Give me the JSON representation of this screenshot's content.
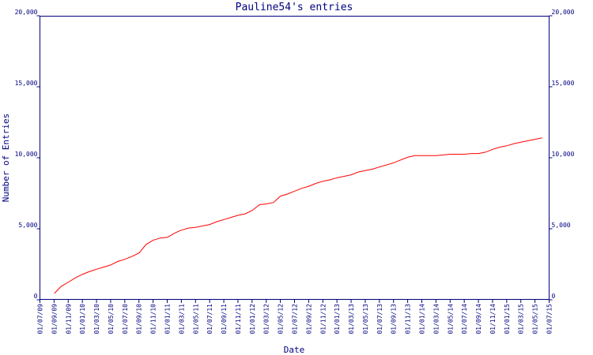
{
  "chart_data": {
    "type": "line",
    "title": "Pauline54's entries",
    "xlabel": "Date",
    "ylabel": "Number of Entries",
    "ylim": [
      0,
      20000
    ],
    "yticks": [
      0,
      5000,
      10000,
      15000,
      20000
    ],
    "ytick_labels": [
      "0",
      "5,000",
      "10,000",
      "15,000",
      "20,000"
    ],
    "xlim": [
      "2009-07-01",
      "2015-07-01"
    ],
    "xtick_labels": [
      "01/07/09",
      "01/09/09",
      "01/11/09",
      "01/01/10",
      "01/03/10",
      "01/05/10",
      "01/07/10",
      "01/09/10",
      "01/11/10",
      "01/01/11",
      "01/03/11",
      "01/05/11",
      "01/07/11",
      "01/09/11",
      "01/11/11",
      "01/01/12",
      "01/03/12",
      "01/05/12",
      "01/07/12",
      "01/09/12",
      "01/11/12",
      "01/01/13",
      "01/03/13",
      "01/05/13",
      "01/07/13",
      "01/09/13",
      "01/11/13",
      "01/01/14",
      "01/03/14",
      "01/05/14",
      "01/07/14",
      "01/09/14",
      "01/11/14",
      "01/01/15",
      "01/03/15",
      "01/05/15",
      "01/07/15"
    ],
    "grid": false,
    "colors": {
      "axis": "#000080",
      "series": "#ff0000",
      "background": "#ffffff"
    },
    "series": [
      {
        "x": [
          "2009-09-01",
          "2009-10-01",
          "2009-11-01",
          "2009-12-01",
          "2010-01-01",
          "2010-02-01",
          "2010-03-01",
          "2010-04-01",
          "2010-05-01",
          "2010-06-01",
          "2010-07-01",
          "2010-08-01",
          "2010-09-01",
          "2010-10-01",
          "2010-11-01",
          "2010-12-01",
          "2011-01-01",
          "2011-02-01",
          "2011-03-01",
          "2011-04-01",
          "2011-05-01",
          "2011-06-01",
          "2011-07-01",
          "2011-08-01",
          "2011-09-01",
          "2011-10-01",
          "2011-11-01",
          "2011-12-01",
          "2012-01-01",
          "2012-02-01",
          "2012-03-01",
          "2012-04-01",
          "2012-05-01",
          "2012-06-01",
          "2012-07-01",
          "2012-08-01",
          "2012-09-01",
          "2012-10-01",
          "2012-11-01",
          "2012-12-01",
          "2013-01-01",
          "2013-02-01",
          "2013-03-01",
          "2013-04-01",
          "2013-05-01",
          "2013-06-01",
          "2013-07-01",
          "2013-08-01",
          "2013-09-01",
          "2013-10-01",
          "2013-11-01",
          "2013-12-01",
          "2014-01-01",
          "2014-02-01",
          "2014-03-01",
          "2014-04-01",
          "2014-05-01",
          "2014-06-01",
          "2014-07-01",
          "2014-08-01",
          "2014-09-01",
          "2014-10-01",
          "2014-11-01",
          "2014-12-01",
          "2015-01-01",
          "2015-02-01",
          "2015-03-01",
          "2015-04-01",
          "2015-05-01",
          "2015-06-01"
        ],
        "values": [
          450,
          950,
          1250,
          1550,
          1800,
          2000,
          2150,
          2300,
          2450,
          2700,
          2850,
          3050,
          3300,
          3900,
          4200,
          4350,
          4400,
          4700,
          4900,
          5050,
          5100,
          5200,
          5300,
          5500,
          5650,
          5800,
          5950,
          6050,
          6300,
          6700,
          6750,
          6850,
          7300,
          7450,
          7650,
          7850,
          8000,
          8200,
          8350,
          8450,
          8600,
          8700,
          8800,
          9000,
          9100,
          9200,
          9350,
          9500,
          9650,
          9850,
          10050,
          10150,
          10150,
          10150,
          10150,
          10200,
          10250,
          10250,
          10250,
          10300,
          10300,
          10400,
          10600,
          10750,
          10850,
          11000,
          11100,
          11200,
          11300,
          11400
        ]
      }
    ]
  }
}
